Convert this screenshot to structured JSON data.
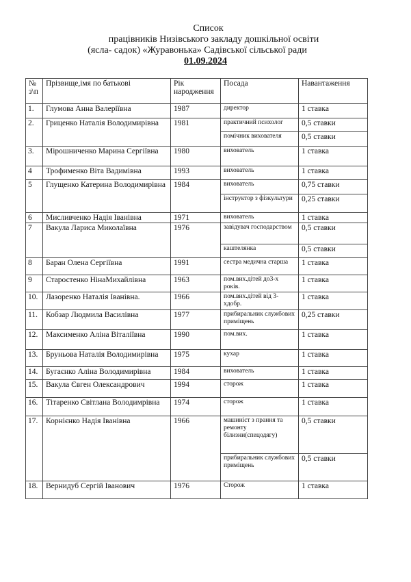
{
  "title": {
    "line1": "Список",
    "line2": "працівників  Низівського закладу дошкільної освіти",
    "line3": "(ясла- садок) «Журавонька»  Садівської сільської ради",
    "date": "01.09.2024"
  },
  "table": {
    "headers": {
      "no": "№ з\\п",
      "name": "Прізвище,імя по батькові",
      "year": "Рік народження",
      "position": "Посада",
      "load": "Навантаження"
    },
    "rows": [
      {
        "no": "1.",
        "name": "Глумова Анна Валеріївна",
        "year": "1987",
        "positions": [
          {
            "title": "директор",
            "load": "1 ставка"
          }
        ]
      },
      {
        "no": "2.",
        "name": "Гриценко Наталія Володимирівна",
        "year": "1981",
        "positions": [
          {
            "title": "практичний психолог",
            "load": "0,5 ставки"
          },
          {
            "title": "помічник вихователя",
            "load": "0,5 ставки"
          }
        ]
      },
      {
        "no": "3.",
        "name": "Мірошниченко Марина Сергіївна",
        "year": "1980",
        "positions": [
          {
            "title": "вихователь",
            "load": "1 ставка"
          }
        ]
      },
      {
        "no": "4",
        "name": "Трофименко Віта Вадимівна",
        "year": "1993",
        "positions": [
          {
            "title": "вихователь",
            "load": "1 ставка"
          }
        ]
      },
      {
        "no": "5",
        "name": "Глущенко Катерина Володимирівна",
        "year": "1984",
        "positions": [
          {
            "title": "вихователь",
            "load": "0,75 ставки"
          },
          {
            "title": "інструктор з фізкультури",
            "load": "0,25 ставки"
          }
        ]
      },
      {
        "no": "6",
        "name": "Мисливченко Надія Іванівна",
        "year": "1971",
        "positions": [
          {
            "title": "вихователь",
            "load": "1 ставка"
          }
        ]
      },
      {
        "no": "7",
        "name": "Вакула Лариса Миколаївна",
        "year": "1976",
        "positions": [
          {
            "title": "завідувач господарством",
            "load": "0,5 ставки"
          },
          {
            "title": "каштелянка",
            "load": "0,5 ставки"
          }
        ]
      },
      {
        "no": "8",
        "name": "Баран Олена Сергіївна",
        "year": "1991",
        "positions": [
          {
            "title": "сестра   медична старша",
            "load": "1 ставка"
          }
        ]
      },
      {
        "no": "9",
        "name": "Старостенко НінаМихайлівна",
        "year": "1963",
        "positions": [
          {
            "title": "пом.вих.дітей до3-х років.",
            "load": "1 ставка"
          }
        ]
      },
      {
        "no": "10.",
        "name": "Лазоренко Наталія Іванівна.",
        "year": "1966",
        "positions": [
          {
            "title": "пом.вих.дітей від 3-хдобр.",
            "load": "1 ставка"
          }
        ]
      },
      {
        "no": "11.",
        "name": "Кобзар Людмила Василівна",
        "year": "1977",
        "positions": [
          {
            "title": "прибиральник службових приміщень",
            "load": "0,25 ставки"
          }
        ]
      },
      {
        "no": "12.",
        "name": "Максименко Аліна Віталіївна",
        "year": "1990",
        "positions": [
          {
            "title": "пом.вих.",
            "load": "1 ставка"
          }
        ]
      },
      {
        "no": "13.",
        "name": "Бруньова Наталія Володимирівна",
        "year": "1975",
        "positions": [
          {
            "title": "кухар",
            "load": "1 ставка"
          }
        ]
      },
      {
        "no": "14.",
        "name": "Бугаєнко Аліна Володимирівна",
        "year": "1984",
        "positions": [
          {
            "title": "вихователь",
            "load": "1 ставка"
          }
        ]
      },
      {
        "no": "15.",
        "name": "Вакула Євген Олександрович",
        "year": "1994",
        "positions": [
          {
            "title": "сторож",
            "load": "1 ставка"
          }
        ]
      },
      {
        "no": "16.",
        "name": "Тітаренко Світлана Володимрівна",
        "year": "1974",
        "positions": [
          {
            "title": "сторож",
            "load": "1 ставка"
          }
        ]
      },
      {
        "no": "17.",
        "name": "Корнієнко Надія Іванівна",
        "year": "1966",
        "positions": [
          {
            "title": "машиніст з прання та ремонту білизни(спецодягу)",
            "load": "0,5 ставки"
          },
          {
            "title": "прибиральник службових приміщень",
            "load": "0,5 ставки"
          }
        ]
      },
      {
        "no": "18.",
        "name": "Вернидуб Сергій Іванович",
        "year": "1976",
        "positions": [
          {
            "title": "Сторож",
            "load": "1 ставка"
          }
        ]
      }
    ]
  }
}
